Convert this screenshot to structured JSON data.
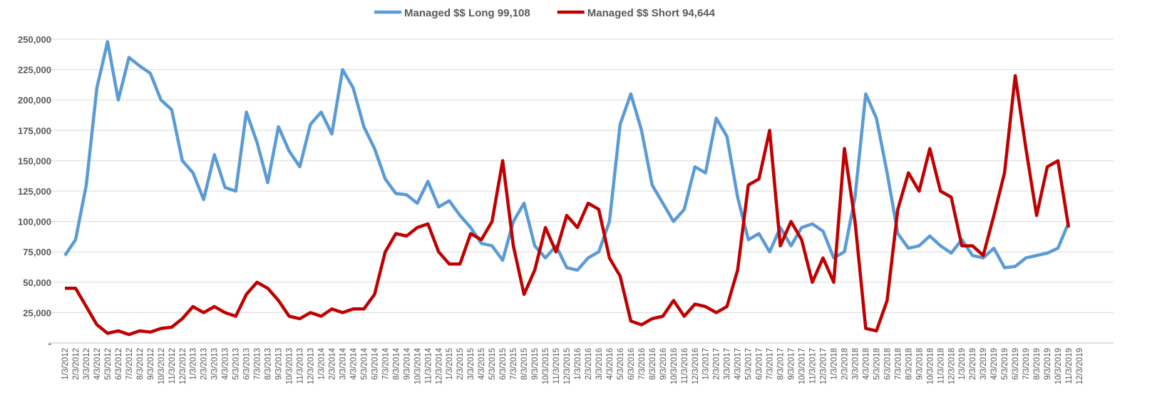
{
  "chart_data": {
    "type": "line",
    "categories": [
      "1/3/2012",
      "2/3/2012",
      "3/3/2012",
      "4/3/2012",
      "5/3/2012",
      "6/3/2012",
      "7/3/2012",
      "8/3/2012",
      "9/3/2012",
      "10/3/2012",
      "11/3/2012",
      "12/3/2012",
      "1/3/2013",
      "2/3/2013",
      "3/3/2013",
      "4/3/2013",
      "5/3/2013",
      "6/3/2013",
      "7/3/2013",
      "8/3/2013",
      "9/3/2013",
      "10/3/2013",
      "11/3/2013",
      "12/3/2013",
      "1/3/2014",
      "2/3/2014",
      "3/3/2014",
      "4/3/2014",
      "5/3/2014",
      "6/3/2014",
      "7/3/2014",
      "8/3/2014",
      "9/3/2014",
      "10/3/2014",
      "11/3/2014",
      "12/3/2014",
      "1/3/2015",
      "2/3/2015",
      "3/3/2015",
      "4/3/2015",
      "5/3/2015",
      "6/3/2015",
      "7/3/2015",
      "8/3/2015",
      "9/3/2015",
      "10/3/2015",
      "11/3/2015",
      "12/3/2015",
      "1/3/2016",
      "2/3/2016",
      "3/3/2016",
      "4/3/2016",
      "5/3/2016",
      "6/3/2016",
      "7/3/2016",
      "8/3/2016",
      "9/3/2016",
      "10/3/2016",
      "11/3/2016",
      "12/3/2016",
      "1/3/2017",
      "2/3/2017",
      "3/3/2017",
      "4/3/2017",
      "5/3/2017",
      "6/3/2017",
      "7/3/2017",
      "8/3/2017",
      "9/3/2017",
      "10/3/2017",
      "11/3/2017",
      "12/3/2017",
      "1/3/2018",
      "2/3/2018",
      "3/3/2018",
      "4/3/2018",
      "5/3/2018",
      "6/3/2018",
      "7/3/2018",
      "8/3/2018",
      "9/3/2018",
      "10/3/2018",
      "11/3/2018",
      "12/3/2018",
      "1/3/2019",
      "2/3/2019",
      "3/3/2019",
      "4/3/2019",
      "5/3/2019",
      "6/3/2019",
      "7/3/2019",
      "8/3/2019",
      "9/3/2019",
      "10/3/2019",
      "11/3/2019",
      "12/3/2019"
    ],
    "series": [
      {
        "name": "Managed $$ Long 99,108",
        "color": "#5b9bd5",
        "values": [
          72000,
          85000,
          130000,
          210000,
          248000,
          200000,
          235000,
          228000,
          222000,
          200000,
          192000,
          150000,
          140000,
          118000,
          155000,
          128000,
          125000,
          190000,
          165000,
          132000,
          178000,
          158000,
          145000,
          180000,
          190000,
          172000,
          225000,
          210000,
          178000,
          160000,
          135000,
          123000,
          122000,
          115000,
          133000,
          112000,
          117000,
          105000,
          95000,
          82000,
          80000,
          68000,
          100000,
          115000,
          80000,
          70000,
          80000,
          62000,
          60000,
          70000,
          75000,
          100000,
          180000,
          205000,
          175000,
          130000,
          115000,
          100000,
          110000,
          145000,
          140000,
          185000,
          170000,
          120000,
          85000,
          90000,
          75000,
          95000,
          80000,
          95000,
          98000,
          92000,
          70000,
          75000,
          120000,
          205000,
          185000,
          140000,
          90000,
          78000,
          80000,
          88000,
          80000,
          74000,
          85000,
          72000,
          70000,
          78000,
          62000,
          63000,
          70000,
          72000,
          74000,
          78000,
          99000,
          null
        ]
      },
      {
        "name": "Managed $$ Short 94,644",
        "color": "#c00000",
        "values": [
          45000,
          45000,
          30000,
          15000,
          8000,
          10000,
          7000,
          10000,
          9000,
          12000,
          13000,
          20000,
          30000,
          25000,
          30000,
          25000,
          22000,
          40000,
          50000,
          45000,
          35000,
          22000,
          20000,
          25000,
          22000,
          28000,
          25000,
          28000,
          28000,
          40000,
          75000,
          90000,
          88000,
          95000,
          98000,
          75000,
          65000,
          65000,
          90000,
          85000,
          100000,
          150000,
          80000,
          40000,
          60000,
          95000,
          75000,
          105000,
          95000,
          115000,
          110000,
          70000,
          55000,
          18000,
          15000,
          20000,
          22000,
          35000,
          22000,
          32000,
          30000,
          25000,
          30000,
          60000,
          130000,
          135000,
          175000,
          80000,
          100000,
          85000,
          50000,
          70000,
          50000,
          160000,
          100000,
          12000,
          10000,
          35000,
          110000,
          140000,
          125000,
          160000,
          125000,
          120000,
          80000,
          80000,
          72000,
          105000,
          140000,
          220000,
          160000,
          105000,
          145000,
          150000,
          95000,
          null
        ]
      }
    ],
    "ylim": [
      0,
      250000
    ],
    "yticks": [
      {
        "value": 0,
        "label": "-"
      },
      {
        "value": 25000,
        "label": "25,000"
      },
      {
        "value": 50000,
        "label": "50,000"
      },
      {
        "value": 75000,
        "label": "75,000"
      },
      {
        "value": 100000,
        "label": "100,000"
      },
      {
        "value": 125000,
        "label": "125,000"
      },
      {
        "value": 150000,
        "label": "150,000"
      },
      {
        "value": 175000,
        "label": "175,000"
      },
      {
        "value": 200000,
        "label": "200,000"
      },
      {
        "value": 225000,
        "label": "225,000"
      },
      {
        "value": 250000,
        "label": "250,000"
      }
    ],
    "grid": true,
    "legend": "top"
  }
}
